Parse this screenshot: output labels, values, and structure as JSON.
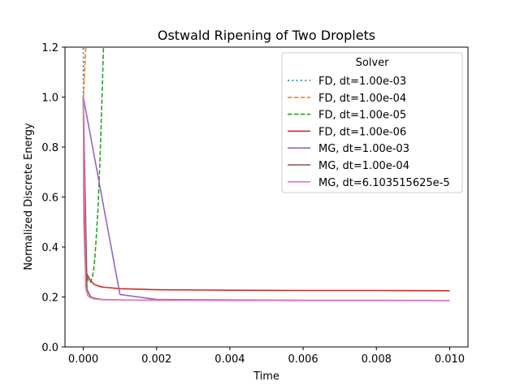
{
  "chart_data": {
    "type": "line",
    "title": "Ostwald Ripening of Two Droplets",
    "xlabel": "Time",
    "ylabel": "Normalized Discrete Energy",
    "xlim": [
      -0.0005,
      0.0105
    ],
    "ylim": [
      0.0,
      1.2
    ],
    "xticks": [
      0.0,
      0.002,
      0.004,
      0.006,
      0.008,
      0.01
    ],
    "xtick_labels": [
      "0.000",
      "0.002",
      "0.004",
      "0.006",
      "0.008",
      "0.010"
    ],
    "yticks": [
      0.0,
      0.2,
      0.4,
      0.6,
      0.8,
      1.0,
      1.2
    ],
    "ytick_labels": [
      "0.0",
      "0.2",
      "0.4",
      "0.6",
      "0.8",
      "1.0",
      "1.2"
    ],
    "grid": false,
    "legend": {
      "title": "Solver",
      "position": "top-right"
    },
    "series": [
      {
        "name": "FD, dt=1.00e-03",
        "color": "#1f77b4",
        "dash": "dotted",
        "x": [
          0.0,
          3e-06
        ],
        "y": [
          1.0,
          1.3
        ]
      },
      {
        "name": "FD, dt=1.00e-04",
        "color": "#ff7f0e",
        "dash": "dashed",
        "x": [
          0.0,
          0.0001
        ],
        "y": [
          1.0,
          1.3
        ]
      },
      {
        "name": "FD, dt=1.00e-05",
        "color": "#2ca02c",
        "dash": "dashed",
        "x": [
          0.0,
          5e-05,
          0.0001,
          0.00015,
          0.0002,
          0.00025,
          0.0003,
          0.00035,
          0.0004,
          0.00045,
          0.0005,
          0.00055,
          0.0006
        ],
        "y": [
          1.0,
          0.36,
          0.28,
          0.26,
          0.26,
          0.28,
          0.33,
          0.43,
          0.55,
          0.73,
          0.95,
          1.2,
          1.3
        ]
      },
      {
        "name": "FD, dt=1.00e-06",
        "color": "#d62728",
        "dash": "solid",
        "x": [
          0.0,
          2e-05,
          5e-05,
          0.0001,
          0.0002,
          0.0003,
          0.0005,
          0.001,
          0.002,
          0.004,
          0.006,
          0.008,
          0.01
        ],
        "y": [
          1.0,
          0.5,
          0.33,
          0.29,
          0.265,
          0.25,
          0.24,
          0.233,
          0.229,
          0.227,
          0.226,
          0.226,
          0.225
        ]
      },
      {
        "name": "MG, dt=1.00e-03",
        "color": "#9467bd",
        "dash": "solid",
        "x": [
          0.0,
          0.001,
          0.002,
          0.004,
          0.006,
          0.008,
          0.01
        ],
        "y": [
          1.0,
          0.21,
          0.19,
          0.188,
          0.187,
          0.187,
          0.186
        ]
      },
      {
        "name": "MG, dt=1.00e-04",
        "color": "#8c564b",
        "dash": "solid",
        "x": [
          0.0,
          0.0001,
          0.0002,
          0.0003,
          0.0005,
          0.001,
          0.002,
          0.004,
          0.006,
          0.008,
          0.01
        ],
        "y": [
          1.0,
          0.23,
          0.2,
          0.195,
          0.19,
          0.188,
          0.187,
          0.187,
          0.186,
          0.186,
          0.186
        ]
      },
      {
        "name": "MG, dt=6.103515625e-5",
        "color": "#e377c2",
        "dash": "solid",
        "x": [
          0.0,
          6e-05,
          0.00012,
          0.0002,
          0.0003,
          0.0005,
          0.001,
          0.002,
          0.004,
          0.006,
          0.008,
          0.01
        ],
        "y": [
          1.0,
          0.24,
          0.205,
          0.197,
          0.192,
          0.189,
          0.188,
          0.187,
          0.186,
          0.186,
          0.186,
          0.186
        ]
      }
    ]
  }
}
